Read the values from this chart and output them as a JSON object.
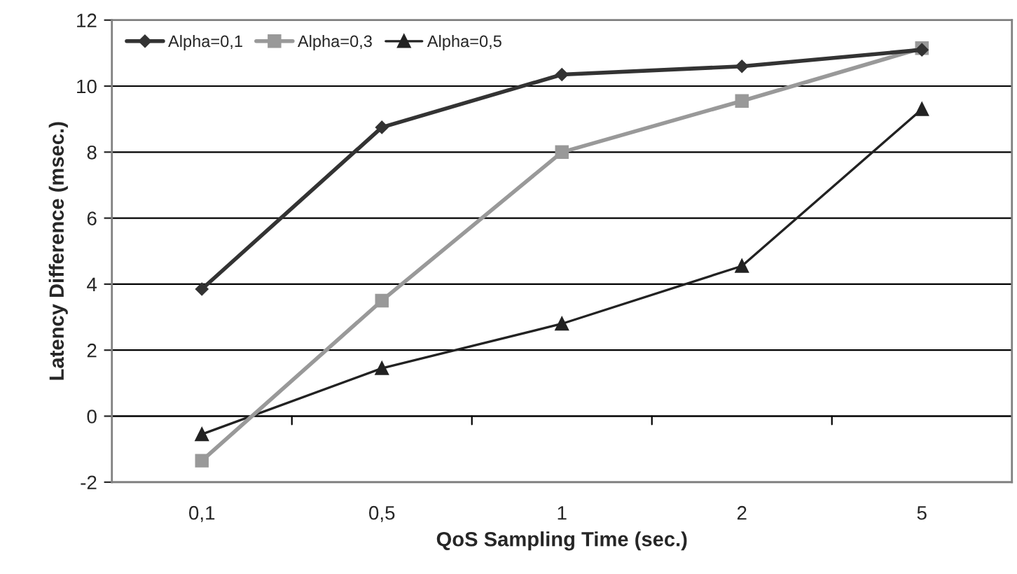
{
  "chart_data": {
    "type": "line",
    "xlabel": "QoS Sampling Time (sec.)",
    "ylabel": "Latency Difference (msec.)",
    "categories": [
      "0,1",
      "0,5",
      "1",
      "2",
      "5"
    ],
    "series": [
      {
        "name": "Alpha=0,1",
        "color": "#333333",
        "marker": "diamond",
        "values": [
          3.85,
          8.75,
          10.35,
          10.6,
          11.1
        ]
      },
      {
        "name": "Alpha=0,3",
        "color": "#999999",
        "marker": "square",
        "values": [
          -1.35,
          3.5,
          8.0,
          9.55,
          11.15
        ]
      },
      {
        "name": "Alpha=0,5",
        "color": "#222222",
        "marker": "triangle",
        "values": [
          -0.55,
          1.45,
          2.8,
          4.55,
          9.3
        ]
      }
    ],
    "ylim": [
      -2,
      12
    ],
    "yticks": [
      -2,
      0,
      2,
      4,
      6,
      8,
      10,
      12
    ],
    "grid": "y",
    "legend": "top left"
  }
}
